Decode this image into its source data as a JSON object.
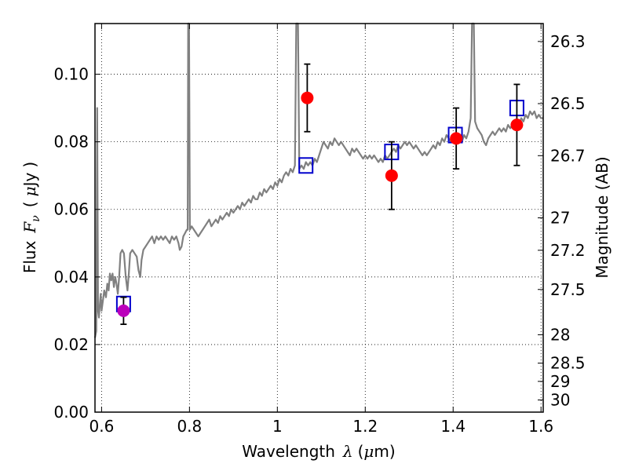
{
  "chart_data": {
    "type": "line",
    "xlabel_parts": [
      "Wavelength",
      "λ",
      "(",
      "μ",
      "m)"
    ],
    "ylabel_parts": [
      "Flux",
      "F",
      "ν",
      "(",
      "μ",
      "Jy",
      ")"
    ],
    "y2label": "Magnitude (AB)",
    "xlim": [
      0.585,
      1.605
    ],
    "ylim": [
      0.0,
      0.115
    ],
    "grid": true,
    "grid_style": "dotted",
    "x_ticks": [
      0.6,
      0.8,
      1.0,
      1.2,
      1.4,
      1.6
    ],
    "x_tick_labels": [
      "0.6",
      "0.8",
      "1",
      "1.2",
      "1.4",
      "1.6"
    ],
    "y_ticks": [
      0.0,
      0.02,
      0.04,
      0.06,
      0.08,
      0.1
    ],
    "y_tick_labels": [
      "0.00",
      "0.02",
      "0.04",
      "0.06",
      "0.08",
      "0.10"
    ],
    "y2_ticks": [
      {
        "label": "26.3",
        "flux": 0.1097
      },
      {
        "label": "26.5",
        "flux": 0.0913
      },
      {
        "label": "26.7",
        "flux": 0.0759
      },
      {
        "label": "27",
        "flux": 0.0575
      },
      {
        "label": "27.2",
        "flux": 0.0479
      },
      {
        "label": "27.5",
        "flux": 0.0363
      },
      {
        "label": "28",
        "flux": 0.0229
      },
      {
        "label": "28.5",
        "flux": 0.0145
      },
      {
        "label": "29",
        "flux": 0.0091
      },
      {
        "label": "30",
        "flux": 0.0036
      }
    ],
    "series": [
      {
        "style": "spectrum",
        "color": "#808080",
        "points": [
          [
            0.585,
            0.022
          ],
          [
            0.588,
            0.024
          ],
          [
            0.59,
            0.09
          ],
          [
            0.592,
            0.03
          ],
          [
            0.594,
            0.028
          ],
          [
            0.596,
            0.032
          ],
          [
            0.598,
            0.035
          ],
          [
            0.6,
            0.03
          ],
          [
            0.603,
            0.033
          ],
          [
            0.606,
            0.036
          ],
          [
            0.61,
            0.034
          ],
          [
            0.613,
            0.038
          ],
          [
            0.616,
            0.036
          ],
          [
            0.619,
            0.041
          ],
          [
            0.622,
            0.039
          ],
          [
            0.625,
            0.041
          ],
          [
            0.628,
            0.037
          ],
          [
            0.631,
            0.04
          ],
          [
            0.634,
            0.038
          ],
          [
            0.637,
            0.035
          ],
          [
            0.64,
            0.04
          ],
          [
            0.643,
            0.047
          ],
          [
            0.647,
            0.048
          ],
          [
            0.651,
            0.047
          ],
          [
            0.655,
            0.04
          ],
          [
            0.659,
            0.036
          ],
          [
            0.662,
            0.041
          ],
          [
            0.665,
            0.047
          ],
          [
            0.67,
            0.048
          ],
          [
            0.675,
            0.047
          ],
          [
            0.68,
            0.046
          ],
          [
            0.684,
            0.042
          ],
          [
            0.688,
            0.04
          ],
          [
            0.691,
            0.045
          ],
          [
            0.695,
            0.048
          ],
          [
            0.7,
            0.049
          ],
          [
            0.705,
            0.05
          ],
          [
            0.71,
            0.051
          ],
          [
            0.715,
            0.052
          ],
          [
            0.72,
            0.05
          ],
          [
            0.725,
            0.052
          ],
          [
            0.73,
            0.051
          ],
          [
            0.735,
            0.052
          ],
          [
            0.74,
            0.051
          ],
          [
            0.745,
            0.052
          ],
          [
            0.75,
            0.051
          ],
          [
            0.755,
            0.05
          ],
          [
            0.76,
            0.052
          ],
          [
            0.765,
            0.051
          ],
          [
            0.77,
            0.052
          ],
          [
            0.775,
            0.05
          ],
          [
            0.778,
            0.048
          ],
          [
            0.782,
            0.049
          ],
          [
            0.786,
            0.052
          ],
          [
            0.79,
            0.053
          ],
          [
            0.794,
            0.054
          ],
          [
            0.796,
            0.054
          ],
          [
            0.797,
            0.115
          ],
          [
            0.799,
            0.115
          ],
          [
            0.801,
            0.054
          ],
          [
            0.805,
            0.055
          ],
          [
            0.81,
            0.054
          ],
          [
            0.815,
            0.053
          ],
          [
            0.82,
            0.052
          ],
          [
            0.825,
            0.053
          ],
          [
            0.83,
            0.054
          ],
          [
            0.835,
            0.055
          ],
          [
            0.84,
            0.056
          ],
          [
            0.845,
            0.057
          ],
          [
            0.85,
            0.055
          ],
          [
            0.855,
            0.056
          ],
          [
            0.86,
            0.057
          ],
          [
            0.865,
            0.056
          ],
          [
            0.87,
            0.058
          ],
          [
            0.875,
            0.057
          ],
          [
            0.88,
            0.058
          ],
          [
            0.885,
            0.059
          ],
          [
            0.89,
            0.058
          ],
          [
            0.895,
            0.06
          ],
          [
            0.9,
            0.059
          ],
          [
            0.905,
            0.06
          ],
          [
            0.91,
            0.061
          ],
          [
            0.915,
            0.06
          ],
          [
            0.92,
            0.062
          ],
          [
            0.925,
            0.061
          ],
          [
            0.93,
            0.062
          ],
          [
            0.935,
            0.063
          ],
          [
            0.94,
            0.062
          ],
          [
            0.945,
            0.064
          ],
          [
            0.95,
            0.063
          ],
          [
            0.955,
            0.063
          ],
          [
            0.96,
            0.065
          ],
          [
            0.965,
            0.064
          ],
          [
            0.97,
            0.066
          ],
          [
            0.975,
            0.065
          ],
          [
            0.98,
            0.066
          ],
          [
            0.985,
            0.067
          ],
          [
            0.99,
            0.066
          ],
          [
            0.995,
            0.068
          ],
          [
            1.0,
            0.067
          ],
          [
            1.005,
            0.069
          ],
          [
            1.01,
            0.068
          ],
          [
            1.015,
            0.07
          ],
          [
            1.02,
            0.071
          ],
          [
            1.025,
            0.07
          ],
          [
            1.03,
            0.072
          ],
          [
            1.035,
            0.071
          ],
          [
            1.04,
            0.073
          ],
          [
            1.043,
            0.115
          ],
          [
            1.047,
            0.115
          ],
          [
            1.05,
            0.072
          ],
          [
            1.055,
            0.073
          ],
          [
            1.06,
            0.072
          ],
          [
            1.065,
            0.074
          ],
          [
            1.07,
            0.073
          ],
          [
            1.075,
            0.074
          ],
          [
            1.08,
            0.073
          ],
          [
            1.085,
            0.075
          ],
          [
            1.09,
            0.074
          ],
          [
            1.095,
            0.076
          ],
          [
            1.1,
            0.078
          ],
          [
            1.105,
            0.08
          ],
          [
            1.11,
            0.079
          ],
          [
            1.115,
            0.078
          ],
          [
            1.12,
            0.08
          ],
          [
            1.125,
            0.079
          ],
          [
            1.13,
            0.081
          ],
          [
            1.135,
            0.08
          ],
          [
            1.14,
            0.079
          ],
          [
            1.145,
            0.08
          ],
          [
            1.15,
            0.079
          ],
          [
            1.155,
            0.078
          ],
          [
            1.16,
            0.077
          ],
          [
            1.165,
            0.076
          ],
          [
            1.17,
            0.078
          ],
          [
            1.175,
            0.077
          ],
          [
            1.18,
            0.078
          ],
          [
            1.185,
            0.077
          ],
          [
            1.19,
            0.076
          ],
          [
            1.195,
            0.075
          ],
          [
            1.2,
            0.076
          ],
          [
            1.205,
            0.075
          ],
          [
            1.21,
            0.076
          ],
          [
            1.215,
            0.075
          ],
          [
            1.22,
            0.076
          ],
          [
            1.225,
            0.075
          ],
          [
            1.23,
            0.074
          ],
          [
            1.235,
            0.075
          ],
          [
            1.24,
            0.074
          ],
          [
            1.245,
            0.076
          ],
          [
            1.25,
            0.075
          ],
          [
            1.255,
            0.076
          ],
          [
            1.26,
            0.077
          ],
          [
            1.265,
            0.078
          ],
          [
            1.27,
            0.077
          ],
          [
            1.275,
            0.079
          ],
          [
            1.28,
            0.078
          ],
          [
            1.285,
            0.079
          ],
          [
            1.29,
            0.08
          ],
          [
            1.295,
            0.079
          ],
          [
            1.3,
            0.08
          ],
          [
            1.305,
            0.079
          ],
          [
            1.31,
            0.078
          ],
          [
            1.315,
            0.079
          ],
          [
            1.32,
            0.078
          ],
          [
            1.325,
            0.077
          ],
          [
            1.33,
            0.076
          ],
          [
            1.335,
            0.077
          ],
          [
            1.34,
            0.076
          ],
          [
            1.345,
            0.077
          ],
          [
            1.35,
            0.078
          ],
          [
            1.355,
            0.079
          ],
          [
            1.36,
            0.078
          ],
          [
            1.365,
            0.08
          ],
          [
            1.37,
            0.079
          ],
          [
            1.375,
            0.081
          ],
          [
            1.38,
            0.08
          ],
          [
            1.385,
            0.082
          ],
          [
            1.39,
            0.081
          ],
          [
            1.395,
            0.08
          ],
          [
            1.4,
            0.081
          ],
          [
            1.405,
            0.08
          ],
          [
            1.41,
            0.082
          ],
          [
            1.415,
            0.081
          ],
          [
            1.42,
            0.08
          ],
          [
            1.425,
            0.082
          ],
          [
            1.43,
            0.081
          ],
          [
            1.435,
            0.083
          ],
          [
            1.44,
            0.087
          ],
          [
            1.443,
            0.115
          ],
          [
            1.447,
            0.115
          ],
          [
            1.45,
            0.086
          ],
          [
            1.455,
            0.084
          ],
          [
            1.46,
            0.083
          ],
          [
            1.465,
            0.082
          ],
          [
            1.47,
            0.08
          ],
          [
            1.475,
            0.079
          ],
          [
            1.48,
            0.081
          ],
          [
            1.485,
            0.082
          ],
          [
            1.49,
            0.083
          ],
          [
            1.495,
            0.082
          ],
          [
            1.5,
            0.083
          ],
          [
            1.505,
            0.084
          ],
          [
            1.51,
            0.083
          ],
          [
            1.515,
            0.084
          ],
          [
            1.52,
            0.083
          ],
          [
            1.525,
            0.085
          ],
          [
            1.53,
            0.084
          ],
          [
            1.535,
            0.085
          ],
          [
            1.54,
            0.084
          ],
          [
            1.545,
            0.086
          ],
          [
            1.55,
            0.085
          ],
          [
            1.555,
            0.087
          ],
          [
            1.56,
            0.086
          ],
          [
            1.565,
            0.088
          ],
          [
            1.57,
            0.087
          ],
          [
            1.575,
            0.089
          ],
          [
            1.58,
            0.088
          ],
          [
            1.585,
            0.089
          ],
          [
            1.59,
            0.087
          ],
          [
            1.595,
            0.088
          ],
          [
            1.6,
            0.087
          ],
          [
            1.605,
            0.087
          ]
        ]
      },
      {
        "style": "open-square",
        "color": "#0000cc",
        "points": [
          [
            0.65,
            0.032
          ],
          [
            1.065,
            0.073
          ],
          [
            1.26,
            0.077
          ],
          [
            1.405,
            0.082
          ],
          [
            1.545,
            0.09
          ]
        ]
      },
      {
        "style": "filled-circle",
        "color": "#ff0000",
        "points": [
          {
            "x": 1.068,
            "y": 0.093,
            "err": 0.01
          },
          {
            "x": 1.26,
            "y": 0.07,
            "err": 0.01
          },
          {
            "x": 1.407,
            "y": 0.081,
            "err": 0.009
          },
          {
            "x": 1.545,
            "y": 0.085,
            "err": 0.012
          }
        ]
      },
      {
        "style": "filled-circle",
        "color": "#bb00bb",
        "points": [
          {
            "x": 0.65,
            "y": 0.03,
            "err": 0.004
          }
        ]
      }
    ]
  }
}
